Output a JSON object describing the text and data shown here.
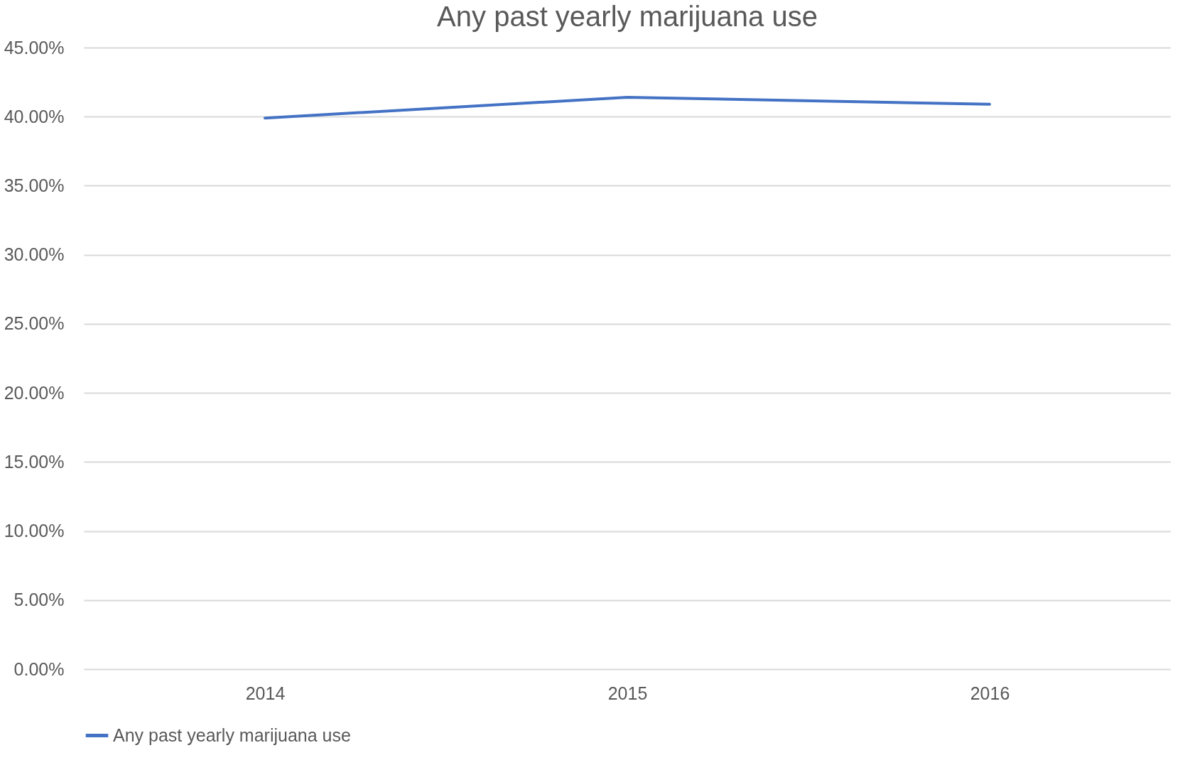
{
  "chart_data": {
    "type": "line",
    "title": "Any past yearly marijuana use",
    "categories": [
      "2014",
      "2015",
      "2016"
    ],
    "series": [
      {
        "name": "Any past yearly marijuana use",
        "color": "#4472c4",
        "values": [
          39.9,
          41.4,
          40.9
        ]
      }
    ],
    "ylim": [
      0,
      45
    ],
    "yticks": [
      {
        "value": 0,
        "label": "0.00%"
      },
      {
        "value": 5,
        "label": "5.00%"
      },
      {
        "value": 10,
        "label": "10.00%"
      },
      {
        "value": 15,
        "label": "15.00%"
      },
      {
        "value": 20,
        "label": "20.00%"
      },
      {
        "value": 25,
        "label": "25.00%"
      },
      {
        "value": 30,
        "label": "30.00%"
      },
      {
        "value": 35,
        "label": "35.00%"
      },
      {
        "value": 40,
        "label": "40.00%"
      },
      {
        "value": 45,
        "label": "45.00%"
      }
    ],
    "grid": "y",
    "legend": "bottom",
    "marker": "none",
    "line_style": "solid"
  }
}
